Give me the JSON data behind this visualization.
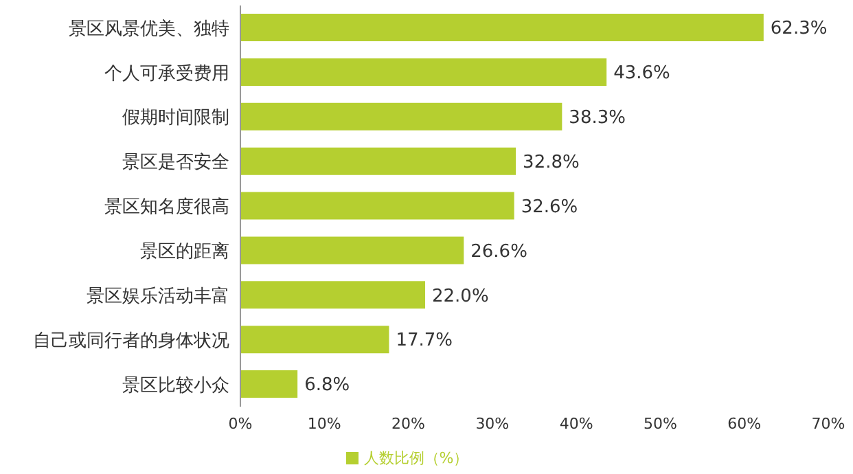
{
  "chart_data": {
    "type": "bar",
    "orientation": "horizontal",
    "categories": [
      "景区风景优美、独特",
      "个人可承受费用",
      "假期时间限制",
      "景区是否安全",
      "景区知名度很高",
      "景区的距离",
      "景区娱乐活动丰富",
      "自己或同行者的身体状况",
      "景区比较小众"
    ],
    "series": [
      {
        "name": "人数比例（%）",
        "color": "#b5cf30",
        "values": [
          62.3,
          43.6,
          38.3,
          32.8,
          32.6,
          26.6,
          22.0,
          17.7,
          6.8
        ],
        "value_labels": [
          "62.3%",
          "43.6%",
          "38.3%",
          "32.8%",
          "32.6%",
          "26.6%",
          "22.0%",
          "17.7%",
          "6.8%"
        ]
      }
    ],
    "xlim": [
      0,
      70
    ],
    "xticks": [
      {
        "value": 0,
        "label": "0%"
      },
      {
        "value": 10,
        "label": "10%"
      },
      {
        "value": 20,
        "label": "20%"
      },
      {
        "value": 30,
        "label": "30%"
      },
      {
        "value": 40,
        "label": "40%"
      },
      {
        "value": 50,
        "label": "50%"
      },
      {
        "value": 60,
        "label": "60%"
      },
      {
        "value": 70,
        "label": "70%"
      }
    ],
    "grid": false,
    "legend": "bottom"
  }
}
